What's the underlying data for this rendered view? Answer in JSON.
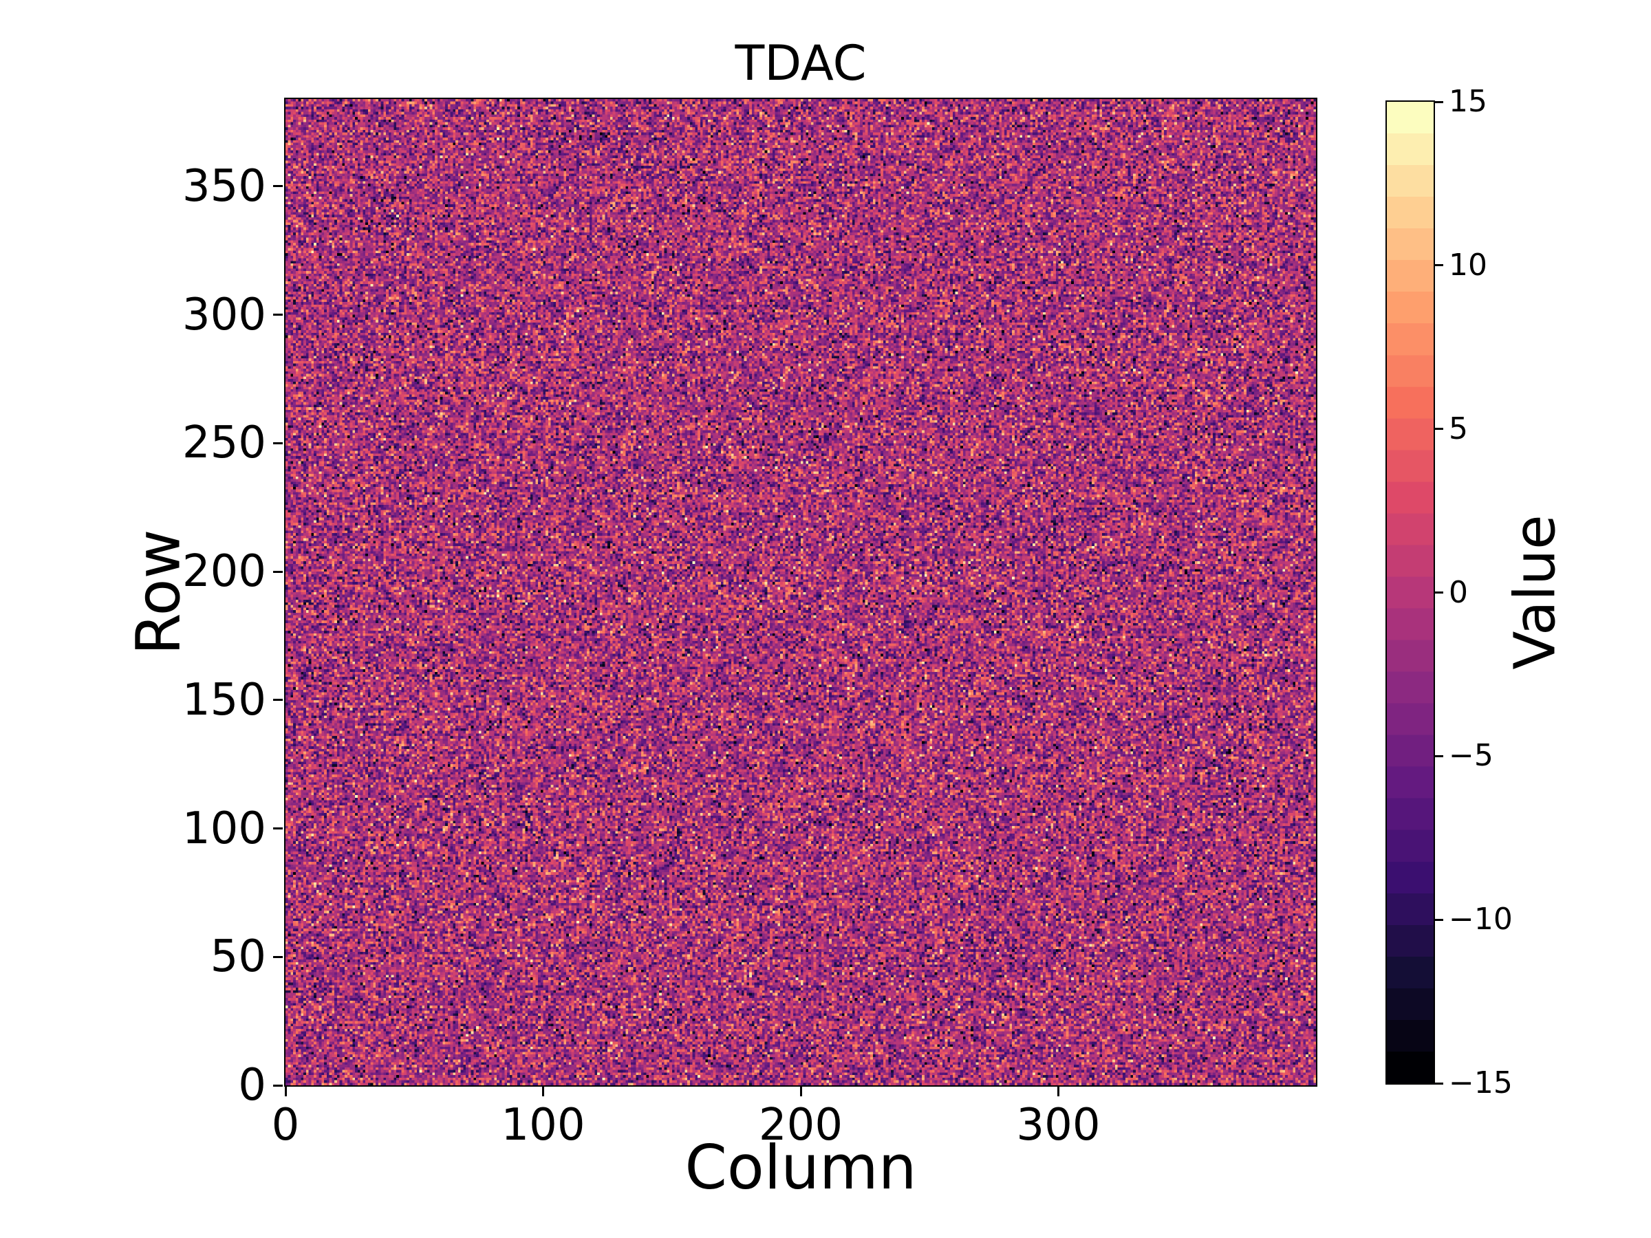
{
  "figure": {
    "background": "#ffffff",
    "text_color": "#000000"
  },
  "chart_data": {
    "type": "heatmap",
    "title": "TDAC",
    "xlabel": "Column",
    "ylabel": "Row",
    "colorbar_label": "Value",
    "grid": false,
    "legend": false,
    "cols": 400,
    "rows": 384,
    "xlim": [
      0,
      400
    ],
    "ylim": [
      0,
      384
    ],
    "vmin": -15,
    "vmax": 15,
    "x_ticks": [
      {
        "v": 0,
        "label": "0"
      },
      {
        "v": 100,
        "label": "100"
      },
      {
        "v": 200,
        "label": "200"
      },
      {
        "v": 300,
        "label": "300"
      }
    ],
    "y_ticks": [
      {
        "v": 0,
        "label": "0"
      },
      {
        "v": 50,
        "label": "50"
      },
      {
        "v": 100,
        "label": "100"
      },
      {
        "v": 150,
        "label": "150"
      },
      {
        "v": 200,
        "label": "200"
      },
      {
        "v": 250,
        "label": "250"
      },
      {
        "v": 300,
        "label": "300"
      },
      {
        "v": 350,
        "label": "350"
      }
    ],
    "colorbar_ticks": [
      {
        "v": 15,
        "label": "15"
      },
      {
        "v": 10,
        "label": "10"
      },
      {
        "v": 5,
        "label": "5"
      },
      {
        "v": 0,
        "label": "0"
      },
      {
        "v": -5,
        "label": "−5"
      },
      {
        "v": -10,
        "label": "−10"
      },
      {
        "v": -15,
        "label": "−15"
      }
    ],
    "colorbar_levels": 31,
    "colormap": "magma",
    "colormap_stops": [
      [
        0.0,
        "#000004"
      ],
      [
        0.1,
        "#140e36"
      ],
      [
        0.2,
        "#3b0f70"
      ],
      [
        0.3,
        "#641a80"
      ],
      [
        0.4,
        "#8c2981"
      ],
      [
        0.5,
        "#b73779"
      ],
      [
        0.6,
        "#de4968"
      ],
      [
        0.7,
        "#f7705c"
      ],
      [
        0.8,
        "#fe9f6d"
      ],
      [
        0.9,
        "#fecf92"
      ],
      [
        1.0,
        "#fcfdbf"
      ]
    ],
    "data_summary": {
      "description": "Per-pixel TDAC trim values over a 400x384 pixel matrix; spatially uncorrelated noise centered near 0 spanning -15 to 15",
      "kind": "gaussian",
      "mean": -1,
      "std": 5,
      "clip": [
        -15,
        15
      ],
      "integer": true,
      "seed": 20
    }
  }
}
